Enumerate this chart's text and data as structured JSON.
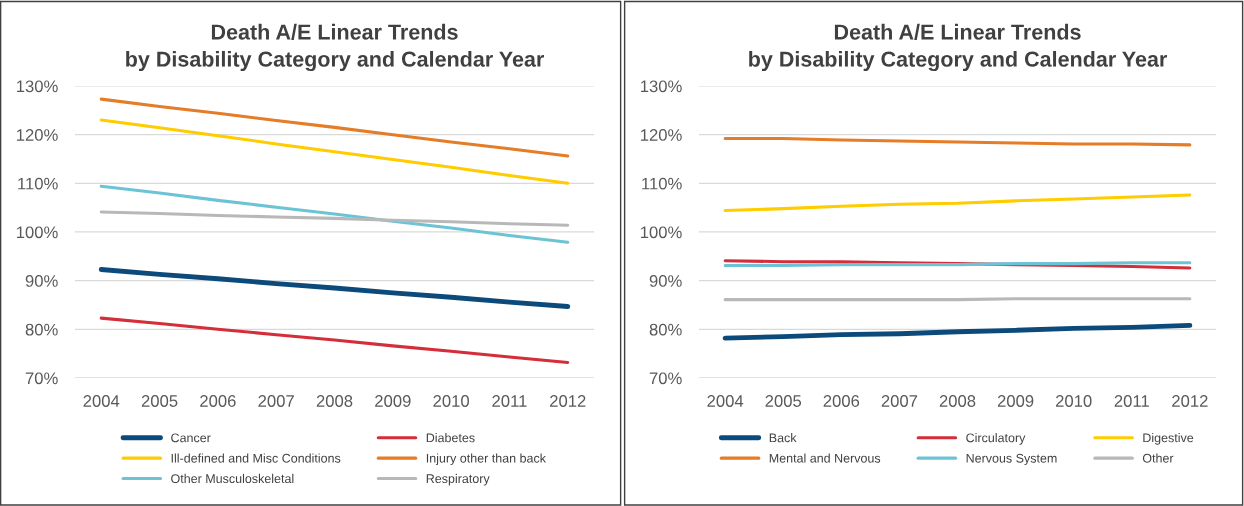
{
  "chart_data": [
    {
      "type": "line",
      "title": "Death A/E Linear Trends\nby Disability Category and Calendar Year",
      "categories": [
        "2004",
        "2005",
        "2006",
        "2007",
        "2008",
        "2009",
        "2010",
        "2011",
        "2012"
      ],
      "series": [
        {
          "name": "Cancer",
          "color": "#0b4a7a",
          "values": [
            92.3,
            91.3,
            90.4,
            89.4,
            88.5,
            87.5,
            86.6,
            85.6,
            84.7
          ]
        },
        {
          "name": "Diabetes",
          "color": "#d42e3a",
          "values": [
            82.3,
            81.2,
            80.0,
            78.9,
            77.8,
            76.6,
            75.5,
            74.3,
            73.2
          ]
        },
        {
          "name": "Ill-defined and Misc Conditions",
          "color": "#ffcc00",
          "values": [
            123.0,
            121.4,
            119.8,
            118.1,
            116.5,
            114.9,
            113.3,
            111.6,
            110.0
          ]
        },
        {
          "name": "Injury other than back",
          "color": "#e57c27",
          "values": [
            127.3,
            125.8,
            124.4,
            122.9,
            121.5,
            120.0,
            118.5,
            117.1,
            115.6
          ]
        },
        {
          "name": "Other Musculoskeletal",
          "color": "#6cc3d6",
          "values": [
            109.4,
            108.0,
            106.5,
            105.1,
            103.7,
            102.2,
            100.8,
            99.3,
            97.9
          ]
        },
        {
          "name": "Respiratory",
          "color": "#b8b8b8",
          "values": [
            104.1,
            103.8,
            103.4,
            103.1,
            102.8,
            102.4,
            102.1,
            101.7,
            101.4
          ]
        }
      ],
      "ylim": [
        70,
        130
      ],
      "yticks": [
        {
          "value": 70,
          "label": "70%"
        },
        {
          "value": 80,
          "label": "80%"
        },
        {
          "value": 90,
          "label": "90%"
        },
        {
          "value": 100,
          "label": "100%"
        },
        {
          "value": 110,
          "label": "110%"
        },
        {
          "value": 120,
          "label": "120%"
        },
        {
          "value": 130,
          "label": "130%"
        }
      ],
      "grid": "y",
      "legend": "bottom",
      "marker": "none",
      "line_style": "solid"
    },
    {
      "type": "line",
      "title": "Death A/E Linear Trends\nby Disability Category and Calendar Year",
      "categories": [
        "2004",
        "2005",
        "2006",
        "2007",
        "2008",
        "2009",
        "2010",
        "2011",
        "2012"
      ],
      "series": [
        {
          "name": "Back",
          "color": "#0b4a7a",
          "values": [
            78.2,
            78.5,
            78.9,
            79.1,
            79.5,
            79.8,
            80.2,
            80.4,
            80.8
          ]
        },
        {
          "name": "Circulatory",
          "color": "#d42e3a",
          "values": [
            94.1,
            93.9,
            93.9,
            93.7,
            93.5,
            93.3,
            93.1,
            92.9,
            92.6
          ]
        },
        {
          "name": "Digestive",
          "color": "#ffcc00",
          "values": [
            104.4,
            104.8,
            105.3,
            105.7,
            105.9,
            106.4,
            106.8,
            107.2,
            107.6
          ]
        },
        {
          "name": "Mental and Nervous",
          "color": "#e57c27",
          "values": [
            119.2,
            119.2,
            118.9,
            118.7,
            118.5,
            118.3,
            118.1,
            118.1,
            117.9
          ]
        },
        {
          "name": "Nervous System",
          "color": "#6cc3d6",
          "values": [
            93.1,
            93.1,
            93.3,
            93.3,
            93.3,
            93.5,
            93.5,
            93.7,
            93.7
          ]
        },
        {
          "name": "Other",
          "color": "#b8b8b8",
          "values": [
            86.1,
            86.1,
            86.1,
            86.1,
            86.1,
            86.3,
            86.3,
            86.3,
            86.3
          ]
        }
      ],
      "ylim": [
        70,
        130
      ],
      "yticks": [
        {
          "value": 70,
          "label": "70%"
        },
        {
          "value": 80,
          "label": "80%"
        },
        {
          "value": 90,
          "label": "90%"
        },
        {
          "value": 100,
          "label": "100%"
        },
        {
          "value": 110,
          "label": "110%"
        },
        {
          "value": 120,
          "label": "120%"
        },
        {
          "value": 130,
          "label": "130%"
        }
      ],
      "grid": "y",
      "legend": "bottom",
      "marker": "none",
      "line_style": "solid"
    }
  ]
}
